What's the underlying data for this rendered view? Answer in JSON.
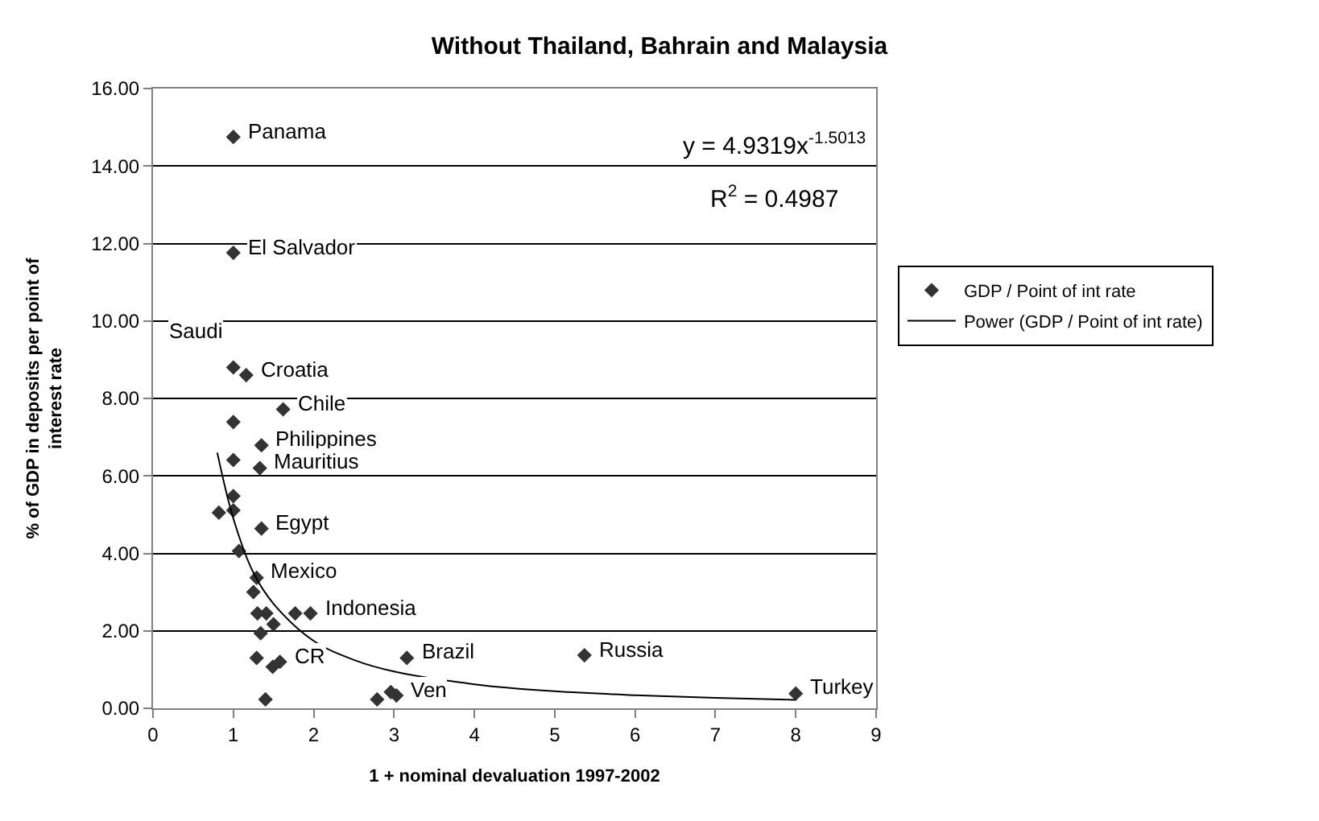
{
  "chart_data": {
    "type": "scatter",
    "title": "Without Thailand, Bahrain and Malaysia",
    "xlabel": "1 + nominal devaluation 1997-2002",
    "ylabel": "% of GDP in deposits per point of interest rate",
    "xlim": [
      0,
      9
    ],
    "xticks": [
      0,
      1,
      2,
      3,
      4,
      5,
      6,
      7,
      8,
      9
    ],
    "ylim": [
      0,
      16
    ],
    "yticks": [
      {
        "value": 0,
        "label": "0.00"
      },
      {
        "value": 2,
        "label": "2.00"
      },
      {
        "value": 4,
        "label": "4.00"
      },
      {
        "value": 6,
        "label": "6.00"
      },
      {
        "value": 8,
        "label": "8.00"
      },
      {
        "value": 10,
        "label": "10.00"
      },
      {
        "value": 12,
        "label": "12.00"
      },
      {
        "value": 14,
        "label": "14.00"
      },
      {
        "value": 16,
        "label": "16.00"
      }
    ],
    "grid": "y",
    "legend": "right",
    "marker": "diamond",
    "series": [
      {
        "name": "GDP / Point of int rate",
        "color": "#333333",
        "x": [
          1.0,
          1.0,
          1.0,
          1.16,
          1.62,
          1.0,
          1.35,
          1.0,
          1.33,
          1.0,
          1.0,
          0.82,
          1.35,
          1.07,
          1.29,
          1.25,
          1.3,
          1.41,
          1.5,
          1.77,
          1.96,
          1.34,
          1.29,
          1.49,
          1.58,
          1.4,
          2.79,
          2.96,
          3.03,
          3.16,
          5.37,
          8.0
        ],
        "values": [
          14.75,
          11.76,
          8.8,
          8.6,
          7.72,
          7.39,
          6.79,
          6.41,
          6.2,
          5.48,
          5.11,
          5.05,
          4.64,
          4.06,
          3.37,
          3.0,
          2.45,
          2.45,
          2.17,
          2.45,
          2.45,
          1.94,
          1.3,
          1.07,
          1.2,
          0.23,
          0.23,
          0.42,
          0.33,
          1.3,
          1.37,
          0.38
        ]
      },
      {
        "name": "Power (GDP / Point of int rate)",
        "type": "line",
        "color": "#000000",
        "marker": "none",
        "x": [
          0.8,
          1.0,
          1.25,
          1.5,
          2.0,
          2.5,
          3.0,
          4.0,
          5.0,
          6.0,
          7.0,
          8.0
        ],
        "values": [
          6.6,
          4.9,
          3.5,
          2.7,
          1.74,
          1.25,
          0.95,
          0.62,
          0.44,
          0.34,
          0.27,
          0.22
        ]
      }
    ],
    "annotations": [
      {
        "text": "Panama",
        "x": 1.0,
        "y": 14.75
      },
      {
        "text": "El Salvador",
        "x": 1.0,
        "y": 11.76
      },
      {
        "text": "Saudi",
        "x": 1.0,
        "y": 8.8
      },
      {
        "text": "Croatia",
        "x": 1.16,
        "y": 8.6
      },
      {
        "text": "Chile",
        "x": 1.62,
        "y": 7.72
      },
      {
        "text": "Philippines",
        "x": 1.35,
        "y": 6.79
      },
      {
        "text": "Mauritius",
        "x": 1.33,
        "y": 6.2
      },
      {
        "text": "Egypt",
        "x": 1.35,
        "y": 4.64
      },
      {
        "text": "Mexico",
        "x": 1.29,
        "y": 3.37
      },
      {
        "text": "Indonesia",
        "x": 1.96,
        "y": 2.45
      },
      {
        "text": "CR",
        "x": 1.58,
        "y": 1.2
      },
      {
        "text": "Brazil",
        "x": 3.16,
        "y": 1.3
      },
      {
        "text": "Russia",
        "x": 5.37,
        "y": 1.37
      },
      {
        "text": "Ven",
        "x": 3.03,
        "y": 0.33
      },
      {
        "text": "Turkey",
        "x": 8.0,
        "y": 0.38
      },
      "y = 4.9319x$^{-1.5013}$",
      "R$^{2}$ = 0.4987"
    ]
  }
}
